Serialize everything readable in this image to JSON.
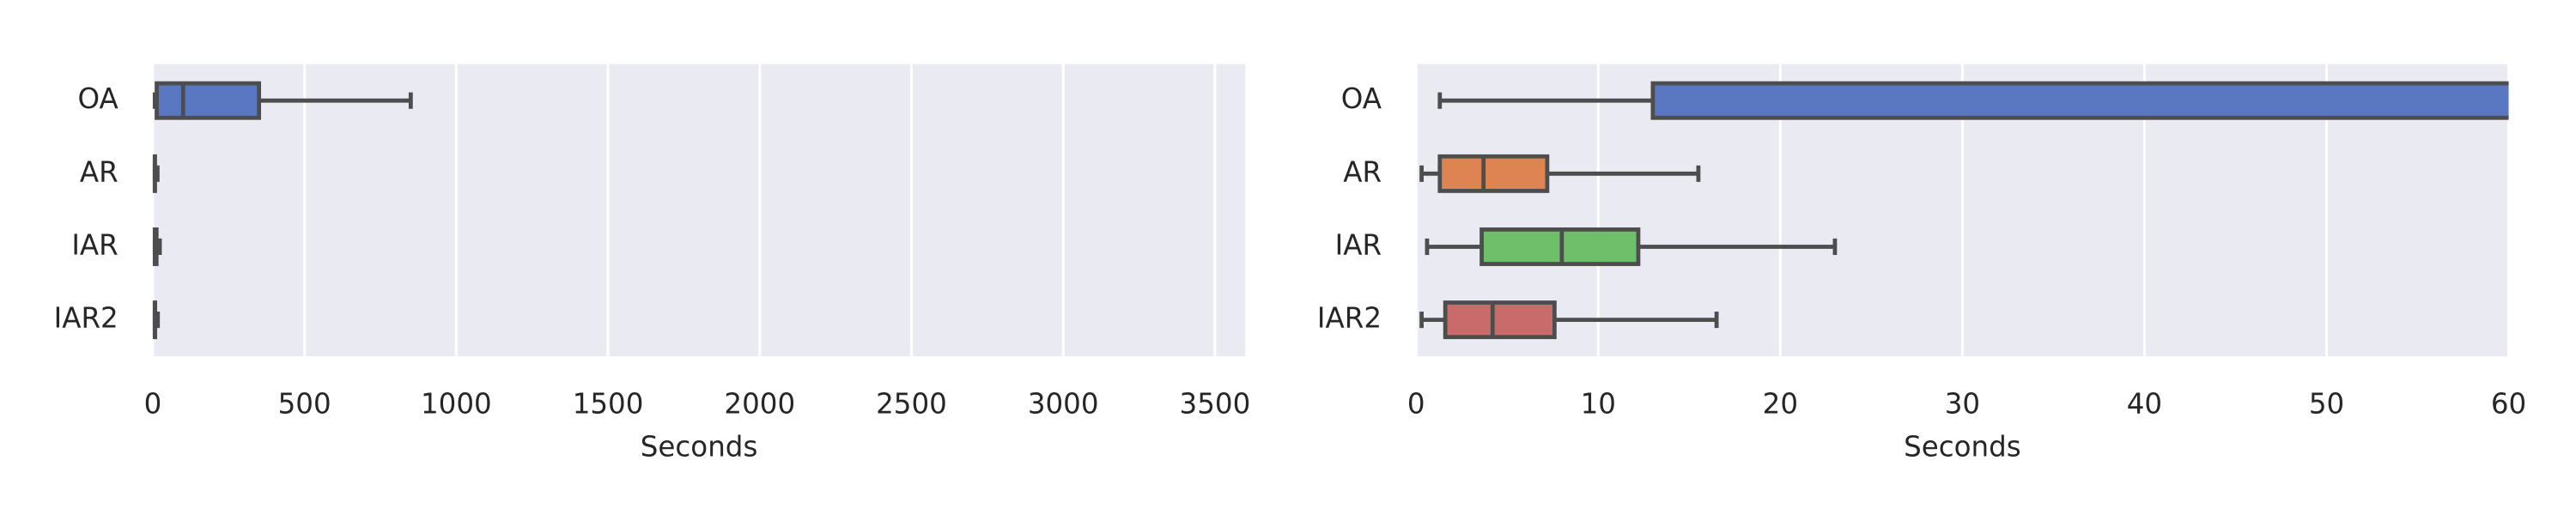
{
  "chart_data": [
    {
      "type": "box",
      "xlabel": "Seconds",
      "categories": [
        "OA",
        "AR",
        "IAR",
        "IAR2"
      ],
      "colors": [
        "#5a78c2",
        "#dd8452",
        "#6fbf6a",
        "#c96b6b"
      ],
      "stats": [
        {
          "min": 1.3,
          "q1": 13,
          "median": 100,
          "q3": 350,
          "max": 850
        },
        {
          "min": 0.3,
          "q1": 1.3,
          "median": 3.7,
          "q3": 7.2,
          "max": 15.5
        },
        {
          "min": 0.6,
          "q1": 3.6,
          "median": 8,
          "q3": 12.2,
          "max": 23
        },
        {
          "min": 0.3,
          "q1": 1.6,
          "median": 4.2,
          "q3": 7.6,
          "max": 16.5
        }
      ],
      "xlim": [
        0,
        3600
      ],
      "xticks": [
        0,
        500,
        1000,
        1500,
        2000,
        2500,
        3000,
        3500
      ],
      "grid": true
    },
    {
      "type": "box",
      "xlabel": "Seconds",
      "categories": [
        "OA",
        "AR",
        "IAR",
        "IAR2"
      ],
      "colors": [
        "#5a78c2",
        "#dd8452",
        "#6fbf6a",
        "#c96b6b"
      ],
      "stats": [
        {
          "min": 1.3,
          "q1": 13,
          "median": 100,
          "q3": 350,
          "max": 850
        },
        {
          "min": 0.3,
          "q1": 1.3,
          "median": 3.7,
          "q3": 7.2,
          "max": 15.5
        },
        {
          "min": 0.6,
          "q1": 3.6,
          "median": 8,
          "q3": 12.2,
          "max": 23
        },
        {
          "min": 0.3,
          "q1": 1.6,
          "median": 4.2,
          "q3": 7.6,
          "max": 16.5
        }
      ],
      "xlim": [
        0,
        60
      ],
      "xticks": [
        0,
        10,
        20,
        30,
        40,
        50,
        60
      ],
      "grid": true
    }
  ]
}
